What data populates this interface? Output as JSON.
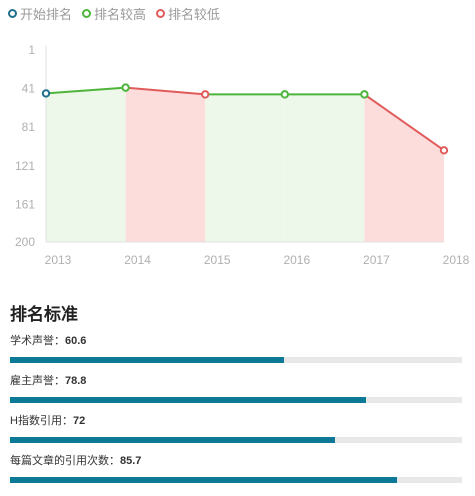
{
  "legend": [
    {
      "label": "开始排名",
      "color": "#1f6f8b"
    },
    {
      "label": "排名较高",
      "color": "#4cb53a"
    },
    {
      "label": "排名较低",
      "color": "#e15b5b"
    }
  ],
  "chart_data": {
    "type": "line",
    "x": [
      "2013",
      "2014",
      "2015",
      "2016",
      "2017",
      "2018"
    ],
    "series": [
      {
        "values": [
          46,
          40,
          47,
          47,
          47,
          105
        ]
      }
    ],
    "yticks": [
      1,
      41,
      81,
      121,
      161,
      200
    ],
    "ylim": [
      1,
      200
    ],
    "y_inverted": true,
    "point_kinds": [
      "start",
      "higher",
      "lower",
      "higher",
      "higher",
      "lower"
    ],
    "colors": {
      "start": "#1f6f8b",
      "higher": "#4cb53a",
      "lower": "#e15b5b",
      "fill_higher": "#eef8ea",
      "fill_lower": "#fddcdc"
    }
  },
  "section": {
    "title": "排名标准"
  },
  "metrics": [
    {
      "label": "学术声誉：",
      "value": "60.6",
      "percent": 60.6
    },
    {
      "label": "雇主声誉：",
      "value": "78.8",
      "percent": 78.8
    },
    {
      "label": "H指数引用：",
      "value": "72",
      "percent": 72
    },
    {
      "label": "每篇文章的引用次数：",
      "value": "85.7",
      "percent": 85.7
    }
  ]
}
